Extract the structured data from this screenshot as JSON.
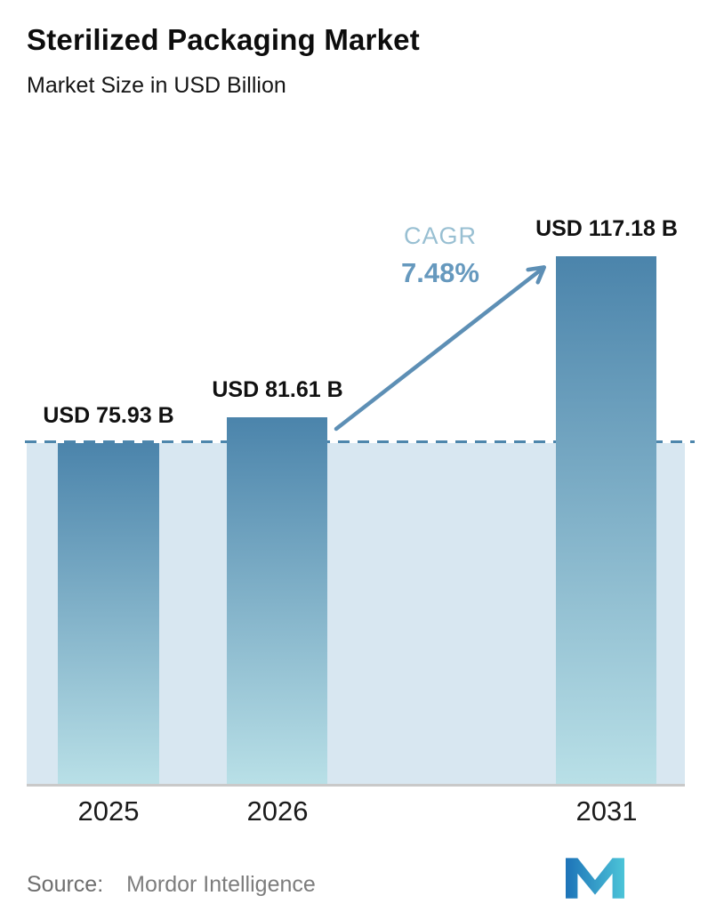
{
  "header": {
    "title": "Sterilized Packaging Market",
    "subtitle": "Market Size in USD Billion"
  },
  "chart_data": {
    "type": "bar",
    "title": "Sterilized Packaging Market",
    "subtitle": "Market Size in USD Billion",
    "unit": "USD Billion",
    "categories": [
      "2025",
      "2026",
      "2031"
    ],
    "values": [
      75.93,
      81.61,
      117.18
    ],
    "value_labels": [
      "USD 75.93 B",
      "USD 81.61 B",
      "USD 117.18 B"
    ],
    "ylim": [
      0,
      130
    ],
    "grid": false,
    "legend": "none",
    "baseline": {
      "value": 75.93,
      "style": "dashed"
    },
    "annotations": {
      "cagr_label": "CAGR",
      "cagr_value": "7.48%"
    },
    "colors": {
      "bar_gradient_top": "#4b84ab",
      "bar_gradient_bottom": "#b9e0e7",
      "band_fill": "#d8e7f1",
      "dashed_line": "#4d86ac",
      "arrow": "#5d8fb5",
      "cagr_label": "#98bfd2",
      "cagr_value": "#6699be",
      "value_label": "#111111",
      "axis_line": "#c9c9c9"
    }
  },
  "footer": {
    "source_label": "Source:",
    "source_value": "Mordor Intelligence",
    "logo": "mordor-intelligence-logo",
    "logo_colors": [
      "#1d73b8",
      "#4cc4d8"
    ]
  }
}
